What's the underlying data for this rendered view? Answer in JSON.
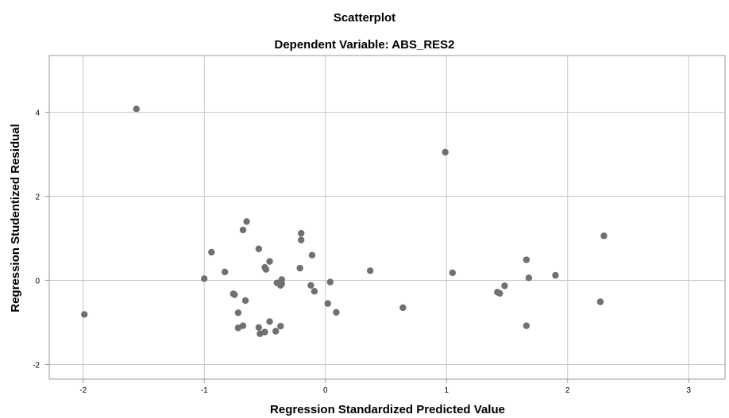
{
  "chart_data": {
    "type": "scatter",
    "title": "Scatterplot",
    "subtitle": "Dependent Variable: ABS_RES2",
    "xlabel": "Regression Standardized Predicted Value",
    "ylabel": "Regression Studentized Residual",
    "xlim": [
      -2.28,
      3.3
    ],
    "ylim": [
      -2.35,
      5.35
    ],
    "xticks": [
      -2,
      -1,
      0,
      1,
      2,
      3
    ],
    "yticks": [
      -2,
      0,
      2,
      4
    ],
    "grid": true,
    "point_color": "#707070",
    "x": [
      -1.99,
      -1.56,
      -1.0,
      -0.94,
      -0.83,
      -0.76,
      -0.75,
      -0.72,
      -0.72,
      -0.68,
      -0.68,
      -0.66,
      -0.65,
      -0.55,
      -0.55,
      -0.54,
      -0.5,
      -0.5,
      -0.49,
      -0.46,
      -0.46,
      -0.41,
      -0.4,
      -0.37,
      -0.37,
      -0.36,
      -0.36,
      -0.21,
      -0.2,
      -0.2,
      -0.12,
      -0.11,
      -0.09,
      0.02,
      0.04,
      0.09,
      0.37,
      0.64,
      0.99,
      1.05,
      1.42,
      1.44,
      1.48,
      1.66,
      1.66,
      1.68,
      1.9,
      2.27,
      2.3
    ],
    "y": [
      -0.81,
      4.08,
      0.04,
      0.67,
      0.2,
      -0.32,
      -0.34,
      -1.13,
      -0.77,
      1.2,
      -1.08,
      -0.48,
      1.4,
      -1.12,
      0.75,
      -1.27,
      0.31,
      -1.23,
      0.26,
      0.45,
      -0.98,
      -1.21,
      -0.06,
      -0.12,
      -1.09,
      0.02,
      -0.08,
      0.29,
      0.96,
      1.12,
      -0.12,
      0.6,
      -0.26,
      -0.55,
      -0.04,
      -0.76,
      0.23,
      -0.65,
      3.05,
      0.18,
      -0.28,
      -0.31,
      -0.13,
      0.49,
      -1.08,
      0.06,
      0.12,
      -0.51,
      1.06
    ]
  }
}
